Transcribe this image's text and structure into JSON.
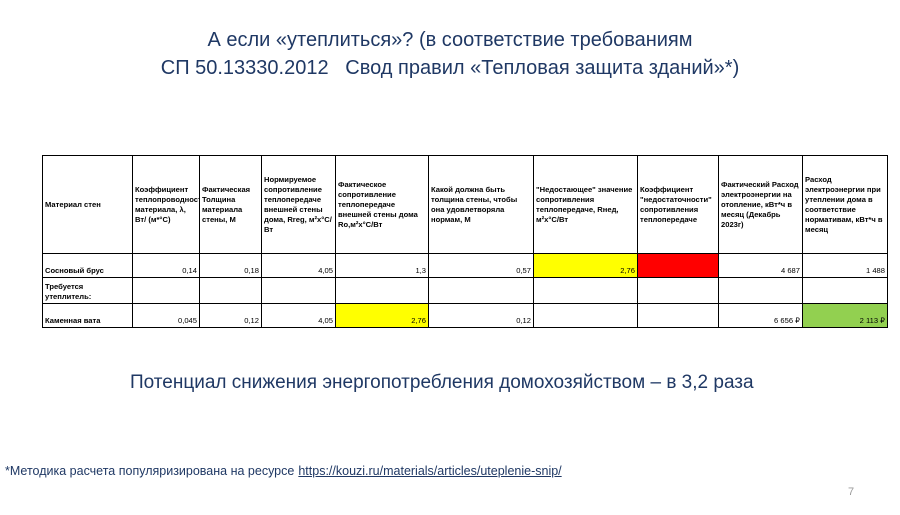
{
  "header": {
    "title_lines": [
      "А если «утеплиться»? (в соответствие требованиям",
      "СП 50.13330.2012   Свод правил «Тепловая защита зданий»*)"
    ]
  },
  "table": {
    "columns": [
      "Материал стен",
      "Коэффициент теплопроводности материала, λ, Вт/ (м*°С)",
      "Фактическая Толщина материала стены, М",
      "Нормируемое сопротивление теплопередаче внешней стены дома, Rreg, м²х°С/Вт",
      "Фактическое сопротивление теплопередаче внешней стены дома Ro,м²х°С/Вт",
      "Какой должна быть толщина стены, чтобы она удовлетворяла нормам, М",
      "\"Недостающее\" значение сопротивления теплопередаче, Rнед, м²х°С/Вт",
      "Коэффициент \"недостаточности\" сопротивления теплопередаче",
      "Фактический Расход электроэнергии на отопление, кВт*ч в месяц (Декабрь 2023г)",
      "Расход электроэнергии при утеплении дома в соответствие нормативам, кВт*ч в месяц"
    ],
    "rows": [
      [
        "Сосновый брус",
        "0,14",
        "0,18",
        "4,05",
        "1,3",
        "0,57",
        "2,76",
        null,
        "4 687",
        "1 488"
      ],
      [
        "Требуется утеплитель:",
        null,
        null,
        null,
        null,
        null,
        null,
        null,
        null,
        null
      ],
      [
        "Каменная вата",
        "0,045",
        "0,12",
        "4,05",
        "2,76",
        "0,12",
        null,
        null,
        "6 656 ₽",
        "2 113 ₽"
      ]
    ]
  },
  "summary": "Потенциал снижения энергопотребления домохозяйством – в 3,2 раза",
  "footnote": {
    "text": "*Методика расчета популяризирована на ресурсе",
    "link": "https://kouzi.ru/materials/articles/uteplenie-snip/"
  },
  "page_number": "7"
}
